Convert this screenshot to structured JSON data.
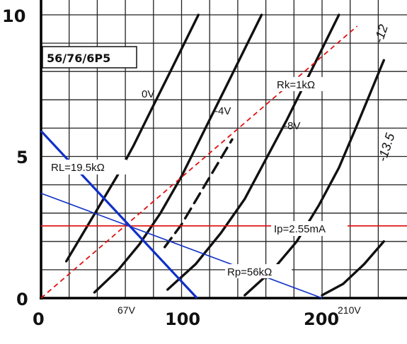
{
  "chart_data": {
    "type": "line",
    "title": "56/76/6P5",
    "xlabel": "",
    "ylabel": "",
    "xlim": [
      0,
      250
    ],
    "ylim": [
      0,
      10
    ],
    "grid": true,
    "x_ticks": [
      "0",
      "100",
      "200"
    ],
    "y_ticks": [
      "0",
      "5",
      "10"
    ],
    "grid_x": [
      0,
      20,
      40,
      60,
      80,
      100,
      120,
      140,
      160,
      180,
      200,
      220,
      240
    ],
    "grid_y": [
      0,
      1,
      2,
      3,
      4,
      5,
      6,
      7,
      8,
      9,
      10
    ],
    "series": [
      {
        "name": "0V",
        "style": "solid",
        "points": [
          [
            18,
            1.3
          ],
          [
            30,
            2.3
          ],
          [
            42,
            3.3
          ],
          [
            54,
            4.3
          ],
          [
            66,
            5.4
          ],
          [
            78,
            6.6
          ],
          [
            90,
            7.8
          ],
          [
            102,
            9.0
          ],
          [
            112,
            10.0
          ]
        ]
      },
      {
        "name": "-4V",
        "style": "solid",
        "points": [
          [
            38,
            0.2
          ],
          [
            55,
            1.0
          ],
          [
            70,
            1.9
          ],
          [
            85,
            3.0
          ],
          [
            100,
            4.3
          ],
          [
            115,
            5.8
          ],
          [
            130,
            7.3
          ],
          [
            145,
            8.8
          ],
          [
            157,
            10.0
          ]
        ]
      },
      {
        "name": "-8V",
        "style": "solid",
        "points": [
          [
            90,
            0.3
          ],
          [
            110,
            1.2
          ],
          [
            128,
            2.3
          ],
          [
            145,
            3.5
          ],
          [
            160,
            4.9
          ],
          [
            175,
            6.3
          ],
          [
            190,
            7.8
          ],
          [
            205,
            9.3
          ],
          [
            212,
            10.0
          ]
        ]
      },
      {
        "name": "",
        "style": "dashed",
        "points": [
          [
            88,
            1.8
          ],
          [
            100,
            2.6
          ],
          [
            112,
            3.6
          ],
          [
            124,
            4.6
          ],
          [
            136,
            5.6
          ]
        ]
      },
      {
        "name": "",
        "style": "solid",
        "points": [
          [
            145,
            0.1
          ],
          [
            165,
            1.0
          ],
          [
            182,
            2.0
          ],
          [
            198,
            3.3
          ],
          [
            212,
            4.6
          ],
          [
            224,
            6.0
          ],
          [
            234,
            7.2
          ],
          [
            244,
            8.4
          ]
        ]
      },
      {
        "name": "",
        "style": "solid",
        "points": [
          [
            200,
            0.1
          ],
          [
            215,
            0.5
          ],
          [
            230,
            1.2
          ],
          [
            244,
            2.0
          ]
        ]
      },
      {
        "name": "",
        "style": "solid",
        "points": [
          [
            160,
            0.7
          ],
          [
            166,
            1.0
          ]
        ]
      }
    ],
    "load_lines": [
      {
        "name": "RL=19.5kΩ",
        "color": "#1030c8",
        "width": 3.2,
        "points": [
          [
            0,
            5.9
          ],
          [
            111,
            0
          ]
        ]
      },
      {
        "name": "Rp=56kΩ",
        "color": "#1030c8",
        "width": 1.6,
        "points": [
          [
            0,
            3.7
          ],
          [
            200,
            0
          ]
        ]
      }
    ],
    "reference_lines": [
      {
        "name": "Ip=2.55mA",
        "type": "horizontal",
        "color": "#e01010",
        "y": 2.55
      },
      {
        "name": "Rk=1kΩ",
        "type": "dashed",
        "color": "#e01010",
        "points": [
          [
            0,
            0
          ],
          [
            225,
            9.6
          ]
        ]
      }
    ],
    "annotations": [
      "67V",
      "210V",
      "-12",
      "-13.5"
    ]
  },
  "labels": {
    "title": "56/76/6P5",
    "curve_0v": "0V",
    "curve_m4v": "-4V",
    "curve_m8v": "-8V",
    "curve_m12": "-12",
    "curve_m135": "-13.5",
    "rk": "Rk=1kΩ",
    "rl": "RL=19.5kΩ",
    "ip": "Ip=2.55mA",
    "rp": "Rp=56kΩ",
    "v67": "67V",
    "v210": "210V",
    "x0": "0",
    "x100": "100",
    "x200": "200",
    "y0": "0",
    "y5": "5",
    "y10": "10"
  }
}
